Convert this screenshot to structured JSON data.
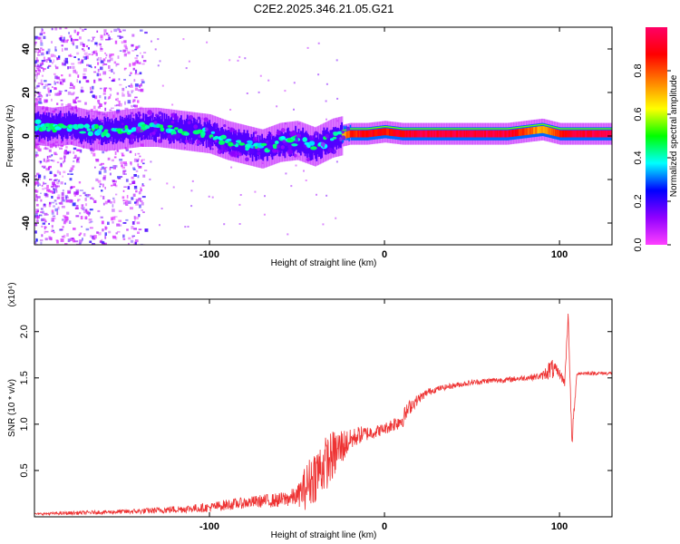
{
  "title": "C2E2.2025.346.21.05.G21",
  "chart_data": [
    {
      "type": "heatmap",
      "name": "spectrogram",
      "xlabel": "Height of straight line (km)",
      "ylabel": "Frequency (Hz)",
      "xlim": [
        -200,
        130
      ],
      "ylim": [
        -50,
        50
      ],
      "x_ticks": [
        -100,
        0,
        100
      ],
      "x_tick_labels": [
        "-100",
        "0",
        "100"
      ],
      "y_ticks": [
        -40,
        -20,
        0,
        20,
        40
      ],
      "y_tick_labels": [
        "-40",
        "-20",
        "0",
        "20",
        "40"
      ],
      "colorbar": {
        "label": "Normalized spectral amplitude",
        "range": [
          0,
          1
        ],
        "ticks": [
          0.0,
          0.2,
          0.4,
          0.6,
          0.8
        ],
        "tick_labels": [
          "0.0",
          "0.2",
          "0.4",
          "0.6",
          "0.8"
        ],
        "colors": [
          "#ff40ff",
          "#9000ff",
          "#0000ff",
          "#00ffff",
          "#00ff00",
          "#ffff00",
          "#ff8000",
          "#ff0000",
          "#ff0066"
        ]
      },
      "ridge": {
        "x": [
          -200,
          -190,
          -180,
          -170,
          -160,
          -150,
          -140,
          -130,
          -120,
          -110,
          -100,
          -90,
          -80,
          -70,
          -60,
          -50,
          -40,
          -30,
          -20,
          -10,
          0,
          10,
          20,
          30,
          40,
          50,
          60,
          70,
          80,
          90,
          100,
          110,
          120,
          130
        ],
        "freq": [
          5,
          4,
          5,
          3,
          2,
          3,
          4,
          4,
          3,
          2,
          1,
          -2,
          -4,
          -6,
          -3,
          -2,
          -5,
          -1,
          1,
          1,
          2,
          1,
          1,
          1,
          1,
          1,
          1,
          1,
          2,
          3,
          1,
          1,
          1,
          1
        ],
        "amplitude": [
          0.3,
          0.3,
          0.35,
          0.35,
          0.3,
          0.3,
          0.35,
          0.35,
          0.35,
          0.35,
          0.35,
          0.3,
          0.3,
          0.3,
          0.3,
          0.3,
          0.25,
          0.3,
          0.85,
          0.9,
          0.85,
          0.9,
          0.95,
          0.95,
          0.95,
          0.95,
          0.95,
          0.95,
          0.8,
          0.7,
          0.85,
          0.95,
          0.95,
          0.95
        ]
      },
      "noise_region_x": [
        -200,
        -140
      ]
    },
    {
      "type": "line",
      "name": "snr",
      "xlabel": "Height of straight line (km)",
      "ylabel": "SNR (10 * v/v)",
      "y_multiplier": "(x10⁴)",
      "xlim": [
        -200,
        130
      ],
      "ylim": [
        0,
        2.35
      ],
      "x_ticks": [
        -100,
        0,
        100
      ],
      "x_tick_labels": [
        "-100",
        "0",
        "100"
      ],
      "y_ticks": [
        0.5,
        1.0,
        1.5,
        2.0
      ],
      "y_tick_labels": [
        "0.5",
        "1.0",
        "1.5",
        "2.0"
      ],
      "series": [
        {
          "name": "SNR",
          "color": "#ee3333",
          "x": [
            -200,
            -180,
            -160,
            -140,
            -120,
            -100,
            -90,
            -80,
            -70,
            -60,
            -50,
            -45,
            -40,
            -35,
            -30,
            -25,
            -20,
            -15,
            -10,
            -5,
            0,
            5,
            10,
            15,
            20,
            25,
            30,
            40,
            50,
            60,
            70,
            80,
            90,
            95,
            100,
            103,
            105,
            107,
            110,
            120,
            130
          ],
          "values": [
            0.03,
            0.04,
            0.05,
            0.06,
            0.08,
            0.1,
            0.13,
            0.15,
            0.17,
            0.18,
            0.22,
            0.32,
            0.45,
            0.55,
            0.65,
            0.75,
            0.82,
            0.88,
            0.9,
            0.92,
            0.95,
            1.0,
            1.05,
            1.2,
            1.28,
            1.35,
            1.38,
            1.42,
            1.45,
            1.47,
            1.48,
            1.5,
            1.52,
            1.6,
            1.55,
            1.45,
            2.2,
            0.8,
            1.55,
            1.55,
            1.55
          ],
          "noise": [
            0.01,
            0.02,
            0.02,
            0.03,
            0.04,
            0.05,
            0.06,
            0.06,
            0.07,
            0.08,
            0.1,
            0.25,
            0.3,
            0.3,
            0.28,
            0.22,
            0.12,
            0.1,
            0.08,
            0.07,
            0.06,
            0.08,
            0.1,
            0.08,
            0.05,
            0.04,
            0.03,
            0.03,
            0.03,
            0.03,
            0.03,
            0.03,
            0.04,
            0.12,
            0.05,
            0.05,
            0.05,
            0.1,
            0.02,
            0.02,
            0.02
          ]
        }
      ]
    }
  ]
}
